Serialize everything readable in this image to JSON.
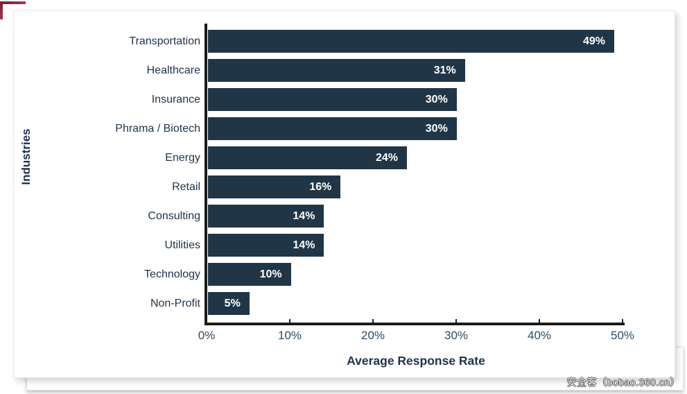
{
  "page": {
    "watermark": "安全客（bobao.360.cn）"
  },
  "decorations": {
    "corner_bracket_color": "#8a2438"
  },
  "chart_data": {
    "type": "bar",
    "orientation": "horizontal",
    "title": "",
    "xlabel": "Average Response Rate",
    "ylabel": "Industries",
    "categories": [
      "Transportation",
      "Healthcare",
      "Insurance",
      "Phrama / Biotech",
      "Energy",
      "Retail",
      "Consulting",
      "Utilities",
      "Technology",
      "Non-Profit"
    ],
    "values": [
      49,
      31,
      30,
      30,
      24,
      16,
      14,
      14,
      10,
      5
    ],
    "value_labels": [
      "49%",
      "31%",
      "30%",
      "30%",
      "24%",
      "16%",
      "14%",
      "14%",
      "10%",
      "5%"
    ],
    "x_tick_values": [
      0,
      10,
      20,
      30,
      40,
      50
    ],
    "x_tick_labels": [
      "0%",
      "10%",
      "20%",
      "30%",
      "40%",
      "50%"
    ],
    "xlim": [
      0,
      50
    ],
    "grid": "off",
    "legend": "none",
    "bar_color": "#203647",
    "value_label_color": "#ffffff",
    "axis_color": "#1b1b1b",
    "text_color": "#20344a",
    "tick_text_color": "#2b4a66"
  }
}
